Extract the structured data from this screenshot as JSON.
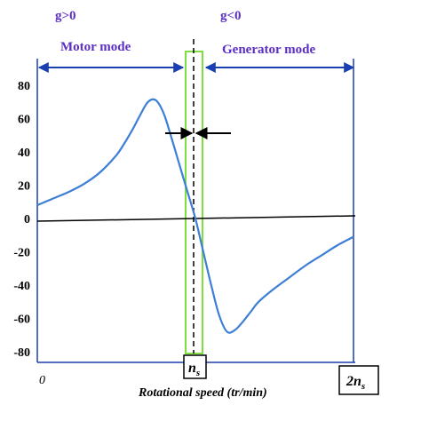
{
  "chart_data": {
    "type": "line",
    "title": "",
    "xlabel": "Rotational speed (tr/min)",
    "ylabel": "",
    "ylim": [
      -88,
      88
    ],
    "xlim": [
      0,
      2
    ],
    "y_ticks": [
      "80",
      "60",
      "40",
      "20",
      "0",
      "-20",
      "-40",
      "-60",
      "-80"
    ],
    "x_origin_label": "0",
    "x_marks": [
      {
        "label": "n",
        "subscript": "s",
        "value": 1.0
      },
      {
        "label": "2n",
        "subscript": "s",
        "value": 2.0
      }
    ],
    "annotations": {
      "left_sign": "g>0",
      "right_sign": "g<0",
      "left_mode": "Motor mode",
      "right_mode": "Generator mode"
    },
    "series": [
      {
        "color": "#3d7fd6",
        "x": [
          0.0,
          0.1,
          0.2,
          0.3,
          0.4,
          0.5,
          0.55,
          0.6,
          0.65,
          0.7,
          0.75,
          0.8,
          0.85,
          0.9,
          0.95,
          1.0,
          1.05,
          1.1,
          1.15,
          1.2,
          1.25,
          1.3,
          1.35,
          1.4,
          1.5,
          1.6,
          1.7,
          1.8,
          1.9,
          2.0
        ],
        "y": [
          8,
          12,
          16,
          21,
          28,
          38,
          45,
          53,
          62,
          70,
          71,
          63,
          48,
          32,
          16,
          0,
          -20,
          -40,
          -58,
          -68,
          -67,
          -62,
          -56,
          -50,
          -42,
          -35,
          -28,
          -22,
          -16,
          -11
        ]
      }
    ],
    "grid": false,
    "legend": "none",
    "colors": {
      "axes": "#1a3fb0",
      "curve": "#3d7fd6",
      "band": "#7ee03a",
      "arrow": "#000000"
    }
  }
}
